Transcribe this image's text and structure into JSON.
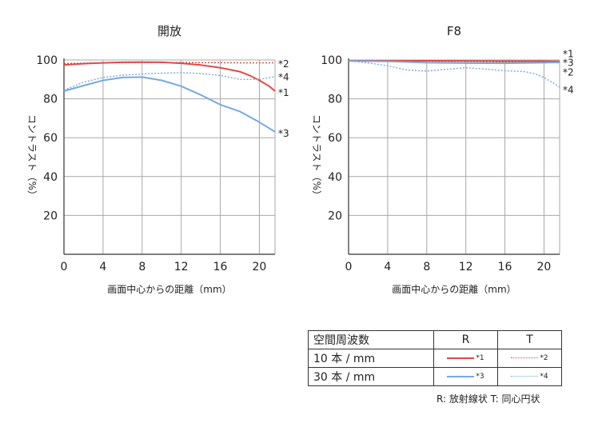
{
  "colors": {
    "red": "#e04a45",
    "blue": "#77a9e0"
  },
  "chart_data": [
    {
      "type": "line",
      "title": "開放",
      "xlabel": "画面中心からの距離（mm）",
      "ylabel": "コントラスト（%）",
      "xlim": [
        0,
        21.6
      ],
      "ylim": [
        0,
        100
      ],
      "xticks": [
        "0",
        "4",
        "8",
        "12",
        "16",
        "20"
      ],
      "yticks": [
        "20",
        "40",
        "60",
        "80",
        "100"
      ],
      "grid": true,
      "series": [
        {
          "name": "*1",
          "color": "red",
          "style": "solid",
          "x": [
            0,
            2,
            4,
            6,
            8,
            10,
            12,
            14,
            16,
            18,
            19,
            20,
            21,
            21.6
          ],
          "y": [
            97.5,
            98.1,
            98.5,
            98.8,
            98.9,
            98.8,
            98.3,
            97.4,
            96,
            94,
            92,
            89.5,
            86.5,
            84
          ]
        },
        {
          "name": "*2",
          "color": "red",
          "style": "dotted",
          "x": [
            0,
            4,
            8,
            12,
            16,
            20,
            21.6
          ],
          "y": [
            98.2,
            98.5,
            98.7,
            98.7,
            98.6,
            98.5,
            98.5
          ]
        },
        {
          "name": "*3",
          "color": "blue",
          "style": "solid",
          "x": [
            0,
            2,
            4,
            6,
            8,
            10,
            12,
            14,
            16,
            18,
            20,
            21.6
          ],
          "y": [
            84,
            86.8,
            89.5,
            91,
            91.2,
            89.5,
            86.5,
            82,
            77,
            73.5,
            68,
            63
          ]
        },
        {
          "name": "*4",
          "color": "blue",
          "style": "dotted",
          "x": [
            0,
            2,
            4,
            6,
            8,
            10,
            12,
            14,
            16,
            18,
            20,
            21.6
          ],
          "y": [
            84.5,
            88.5,
            91,
            92.2,
            92.8,
            93.2,
            93.5,
            93,
            92,
            90,
            90,
            91.5
          ]
        }
      ],
      "endLabels": [
        {
          "text": "*2",
          "y": 98.4
        },
        {
          "text": "*4",
          "y": 91.5
        },
        {
          "text": "*1",
          "y": 83.5
        },
        {
          "text": "*3",
          "y": 62.5
        }
      ]
    },
    {
      "type": "line",
      "title": "F8",
      "xlabel": "画面中心からの距離（mm）",
      "ylabel": "コントラスト（%）",
      "xlim": [
        0,
        21.6
      ],
      "ylim": [
        0,
        100
      ],
      "xticks": [
        "0",
        "4",
        "8",
        "12",
        "16",
        "20"
      ],
      "yticks": [
        "20",
        "40",
        "60",
        "80",
        "100"
      ],
      "grid": true,
      "series": [
        {
          "name": "*1",
          "color": "red",
          "style": "solid",
          "x": [
            0,
            4,
            8,
            12,
            16,
            20,
            21.6
          ],
          "y": [
            99.6,
            99.6,
            99.6,
            99.5,
            99.4,
            99.4,
            99.3
          ]
        },
        {
          "name": "*2",
          "color": "red",
          "style": "dotted",
          "x": [
            0,
            4,
            8,
            12,
            16,
            20,
            21.6
          ],
          "y": [
            99.6,
            99.5,
            99.4,
            99.2,
            99,
            98.8,
            98.5
          ]
        },
        {
          "name": "*3",
          "color": "blue",
          "style": "solid",
          "x": [
            0,
            4,
            8,
            12,
            16,
            20,
            21.6
          ],
          "y": [
            99.5,
            99.3,
            98.6,
            98.4,
            98.3,
            98.6,
            98.8
          ]
        },
        {
          "name": "*4",
          "color": "blue",
          "style": "dotted",
          "x": [
            0,
            2,
            4,
            6,
            8,
            10,
            12,
            14,
            16,
            18,
            19,
            20,
            21,
            21.6
          ],
          "y": [
            99.5,
            98.5,
            97,
            94.8,
            94.3,
            95.2,
            96,
            95.3,
            94.5,
            94,
            93,
            91,
            88,
            86
          ]
        }
      ],
      "endLabels": [
        {
          "text": "*1",
          "y": 103.5
        },
        {
          "text": "*3",
          "y": 98.9
        },
        {
          "text": "*2",
          "y": 94
        },
        {
          "text": "*4",
          "y": 85
        }
      ]
    }
  ],
  "legend": {
    "header": [
      "空間周波数",
      "R",
      "T"
    ],
    "rows": [
      {
        "label": "10 本 / mm",
        "r": {
          "mark": "*1",
          "color": "red",
          "style": "solid"
        },
        "t": {
          "mark": "*2",
          "color": "red",
          "style": "dotted"
        }
      },
      {
        "label": "30 本 / mm",
        "r": {
          "mark": "*3",
          "color": "blue",
          "style": "solid"
        },
        "t": {
          "mark": "*4",
          "color": "blue",
          "style": "dotted"
        }
      }
    ],
    "footnote": "R: 放射線状  T: 同心円状"
  }
}
